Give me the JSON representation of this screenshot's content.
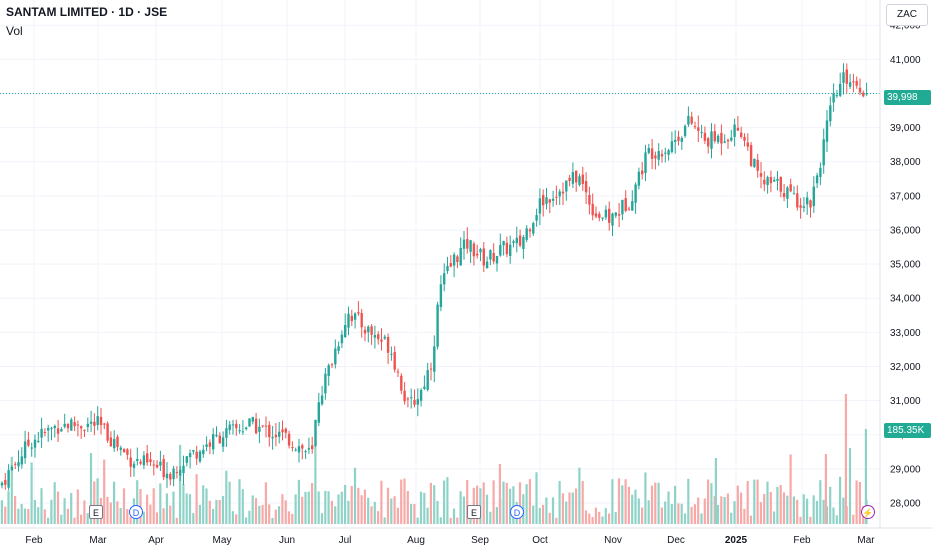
{
  "header": {
    "title": "SANTAM LIMITED · 1D · JSE",
    "vol_label": "Vol"
  },
  "currency": "ZAC",
  "last_price_label": "39,998",
  "volume_label": "185.35K",
  "colors": {
    "up": "#26a69a",
    "down": "#ef5350",
    "up_vol": "#8fd3c8",
    "down_vol": "#f7a9a7",
    "grid": "#f0f3fa",
    "last_line": "#26a69a"
  },
  "events": [
    {
      "type": "earnings",
      "label": "E",
      "date": "Mar"
    },
    {
      "type": "dividend",
      "label": "D",
      "date": "Mar"
    },
    {
      "type": "earnings",
      "label": "E",
      "date": "Sep"
    },
    {
      "type": "dividend",
      "label": "D",
      "date": "Sep"
    },
    {
      "type": "split-flash",
      "label": "⚡",
      "date": "Mar"
    }
  ],
  "chart_data": {
    "type": "candlestick",
    "symbol": "SANTAM LIMITED",
    "interval": "1D",
    "exchange": "JSE",
    "y_axis": {
      "min": 27500,
      "max": 42300,
      "ticks": [
        "42,000",
        "41,000",
        "40,000",
        "39,000",
        "38,000",
        "37,000",
        "36,000",
        "35,000",
        "34,000",
        "33,000",
        "32,000",
        "31,000",
        "30,000",
        "29,000",
        "28,000"
      ]
    },
    "x_axis": {
      "ticks": [
        "Feb",
        "Mar",
        "Apr",
        "May",
        "Jun",
        "Jul",
        "Aug",
        "Sep",
        "Oct",
        "Nov",
        "Dec",
        "2025",
        "Feb",
        "Mar"
      ],
      "bold_tick": "2025"
    },
    "last_price": 39998,
    "last_volume": "185.35K",
    "close_path": [
      [
        "Feb",
        28600
      ],
      [
        "Mar",
        30300
      ],
      [
        "Apr",
        29300
      ],
      [
        "May",
        30000
      ],
      [
        "Jun",
        30100
      ],
      [
        "Jul",
        33200
      ],
      [
        "Aug",
        31600
      ],
      [
        "Aug",
        35100
      ],
      [
        "Sep",
        35500
      ],
      [
        "Oct",
        37300
      ],
      [
        "Nov",
        37700
      ],
      [
        "Dec",
        38700
      ],
      [
        "2025",
        38800
      ],
      [
        "Feb",
        36700
      ],
      [
        "Mar",
        39998
      ]
    ]
  }
}
